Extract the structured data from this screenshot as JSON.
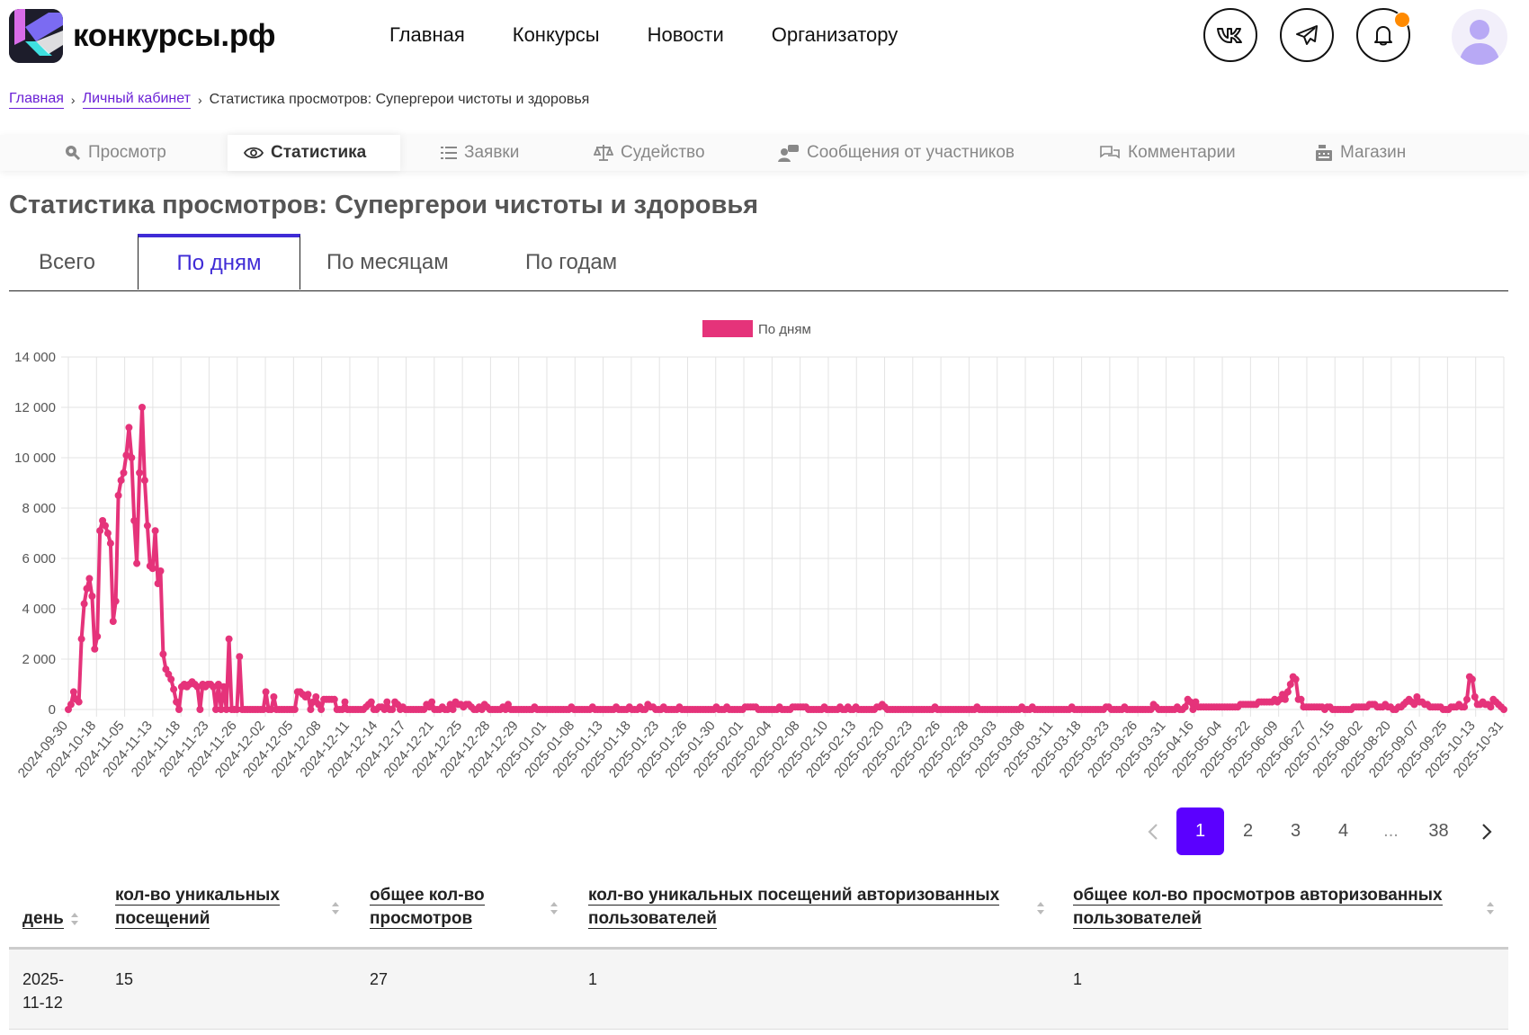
{
  "header": {
    "logo_text": "конкурсы.рф",
    "nav": [
      "Главная",
      "Конкурсы",
      "Новости",
      "Организатору"
    ],
    "icons": [
      "vk-icon",
      "telegram-icon",
      "bell-icon"
    ],
    "accent_color": "#5b00ff",
    "notification_color": "#ff8a00"
  },
  "breadcrumb": {
    "home": "Главная",
    "cabinet": "Личный кабинет",
    "current": "Статистика просмотров: Супергерои чистоты и здоровья"
  },
  "section_tabs": [
    "Просмотр",
    "Статистика",
    "Заявки",
    "Судейство",
    "Сообщения от участников",
    "Комментарии",
    "Магазин"
  ],
  "page_title": "Статистика просмотров: Супергерои чистоты и здоровья",
  "period_tabs": [
    "Всего",
    "По дням",
    "По месяцам",
    "По годам"
  ],
  "pagination": {
    "prev": "‹",
    "pages": [
      "1",
      "2",
      "3",
      "4",
      "...",
      "38"
    ],
    "next": "›",
    "current": "1"
  },
  "table": {
    "headers": [
      "день",
      "кол-во уникальных посещений",
      "общее кол-во просмотров",
      "кол-во уникальных посещений авторизованных пользователей",
      "общее кол-во просмотров авторизованных пользователей"
    ],
    "rows": [
      [
        "2025-11-12",
        "15",
        "27",
        "1",
        "1"
      ]
    ]
  },
  "chart_data": {
    "type": "line",
    "legend": [
      "По дням"
    ],
    "color": "#e5337a",
    "ylim": [
      0,
      14000
    ],
    "yticks": [
      0,
      2000,
      4000,
      6000,
      8000,
      10000,
      12000,
      14000
    ],
    "ytick_labels": [
      "0",
      "2 000",
      "4 000",
      "6 000",
      "8 000",
      "10 000",
      "12 000",
      "14 000"
    ],
    "xtick_labels": [
      "2024-09-30",
      "2024-10-18",
      "2024-11-05",
      "2024-11-13",
      "2024-11-18",
      "2024-11-23",
      "2024-11-26",
      "2024-12-02",
      "2024-12-05",
      "2024-12-08",
      "2024-12-11",
      "2024-12-14",
      "2024-12-17",
      "2024-12-21",
      "2024-12-25",
      "2024-12-28",
      "2024-12-29",
      "2025-01-01",
      "2025-01-08",
      "2025-01-13",
      "2025-01-18",
      "2025-01-23",
      "2025-01-26",
      "2025-01-30",
      "2025-02-01",
      "2025-02-04",
      "2025-02-08",
      "2025-02-10",
      "2025-02-13",
      "2025-02-20",
      "2025-02-23",
      "2025-02-26",
      "2025-02-28",
      "2025-03-03",
      "2025-03-08",
      "2025-03-11",
      "2025-03-18",
      "2025-03-23",
      "2025-03-26",
      "2025-03-31",
      "2025-04-16",
      "2025-05-04",
      "2025-05-22",
      "2025-06-09",
      "2025-06-27",
      "2025-07-15",
      "2025-08-02",
      "2025-08-20",
      "2025-09-07",
      "2025-09-25",
      "2025-10-13",
      "2025-10-31"
    ],
    "values": [
      0,
      200,
      700,
      400,
      300,
      2800,
      4200,
      4800,
      5200,
      4500,
      2400,
      2900,
      7100,
      7500,
      7300,
      7000,
      6600,
      3500,
      4300,
      8500,
      9100,
      9400,
      10100,
      11200,
      10000,
      7500,
      5800,
      9400,
      12000,
      9100,
      7300,
      5700,
      5600,
      7100,
      5000,
      5500,
      2200,
      1600,
      1400,
      1200,
      800,
      300,
      0,
      900,
      1000,
      900,
      1000,
      1100,
      1000,
      900,
      0,
      1000,
      900,
      1000,
      1000,
      900,
      0,
      1000,
      0,
      900,
      0,
      2800,
      0,
      0,
      0,
      2100,
      0,
      0,
      0,
      0,
      0,
      0,
      0,
      0,
      0,
      700,
      0,
      0,
      500,
      0,
      0,
      0,
      0,
      0,
      0,
      0,
      0,
      700,
      700,
      600,
      500,
      600,
      0,
      300,
      500,
      200,
      0,
      400,
      400,
      400,
      400,
      400,
      0,
      0,
      0,
      300,
      0,
      0,
      0,
      0,
      0,
      0,
      0,
      100,
      200,
      300,
      0,
      0,
      100,
      100,
      0,
      300,
      0,
      0,
      300,
      200,
      0,
      100,
      0,
      0,
      0,
      0,
      0,
      0,
      0,
      0,
      200,
      100,
      300,
      0,
      0,
      0,
      100,
      0,
      0,
      200,
      0,
      300,
      200,
      200,
      100,
      200,
      200,
      100,
      0,
      0,
      100,
      0,
      200,
      100,
      0,
      0,
      0,
      0,
      0,
      100,
      0,
      200,
      0,
      0,
      0,
      0,
      0,
      0,
      0,
      0,
      0,
      100,
      0,
      0,
      0,
      0,
      0,
      0,
      0,
      0,
      0,
      0,
      0,
      0,
      0,
      100,
      0,
      0,
      0,
      0,
      0,
      0,
      0,
      100,
      0,
      0,
      0,
      0,
      0,
      0,
      0,
      0,
      100,
      0,
      0,
      0,
      0,
      100,
      0,
      0,
      0,
      100,
      0,
      0,
      200,
      100,
      100,
      0,
      0,
      0,
      100,
      0,
      0,
      0,
      0,
      0,
      100,
      0,
      0,
      0,
      0,
      0,
      0,
      0,
      0,
      0,
      0,
      0,
      0,
      0,
      100,
      0,
      0,
      0,
      100,
      0,
      0,
      0,
      0,
      0,
      0,
      100,
      100,
      100,
      100,
      100,
      0,
      0,
      0,
      0,
      0,
      0,
      0,
      0,
      100,
      0,
      0,
      0,
      0,
      100,
      100,
      100,
      100,
      100,
      100,
      0,
      0,
      0,
      0,
      0,
      0,
      100,
      0,
      0,
      0,
      0,
      0,
      100,
      0,
      0,
      100,
      0,
      0,
      100,
      0,
      0,
      0,
      0,
      0,
      0,
      0,
      100,
      100,
      200,
      100,
      0,
      0,
      0,
      0,
      0,
      0,
      0,
      0,
      0,
      0,
      0,
      0,
      0,
      0,
      0,
      0,
      0,
      0,
      100,
      0,
      0,
      0,
      0,
      0,
      0,
      0,
      0,
      0,
      0,
      0,
      0,
      0,
      0,
      0,
      100,
      0,
      0,
      0,
      0,
      0,
      0,
      0,
      0,
      0,
      0,
      0,
      0,
      0,
      0,
      0,
      0,
      100,
      0,
      0,
      0,
      100,
      0,
      0,
      0,
      0,
      0,
      0,
      0,
      0,
      0,
      0,
      0,
      0,
      0,
      0,
      100,
      0,
      0,
      0,
      0,
      0,
      0,
      0,
      0,
      0,
      0,
      0,
      0,
      100,
      100,
      0,
      0,
      0,
      0,
      0,
      100,
      0,
      0,
      0,
      0,
      0,
      0,
      0,
      0,
      0,
      0,
      200,
      100,
      0,
      0,
      0,
      0,
      0,
      0,
      0,
      100,
      0,
      0,
      100,
      400,
      300,
      0,
      300,
      100,
      100,
      100,
      100,
      100,
      100,
      100,
      100,
      100,
      100,
      100,
      100,
      100,
      100,
      100,
      100,
      200,
      200,
      200,
      200,
      200,
      200,
      200,
      300,
      300,
      300,
      300,
      300,
      300,
      400,
      300,
      400,
      600,
      400,
      700,
      1000,
      1300,
      1200,
      400,
      400,
      100,
      100,
      100,
      100,
      100,
      100,
      100,
      100,
      0,
      100,
      100,
      0,
      0,
      0,
      0,
      0,
      0,
      0,
      0,
      100,
      100,
      100,
      100,
      100,
      100,
      200,
      200,
      200,
      100,
      100,
      100,
      200,
      100,
      100,
      0,
      0,
      100,
      100,
      200,
      300,
      400,
      300,
      200,
      500,
      300,
      300,
      200,
      200,
      100,
      100,
      100,
      100,
      100,
      0,
      0,
      0,
      100,
      100,
      100,
      200,
      100,
      100,
      400,
      1300,
      1200,
      500,
      200,
      200,
      300,
      200,
      200,
      100,
      400,
      300,
      200,
      100,
      0
    ]
  }
}
